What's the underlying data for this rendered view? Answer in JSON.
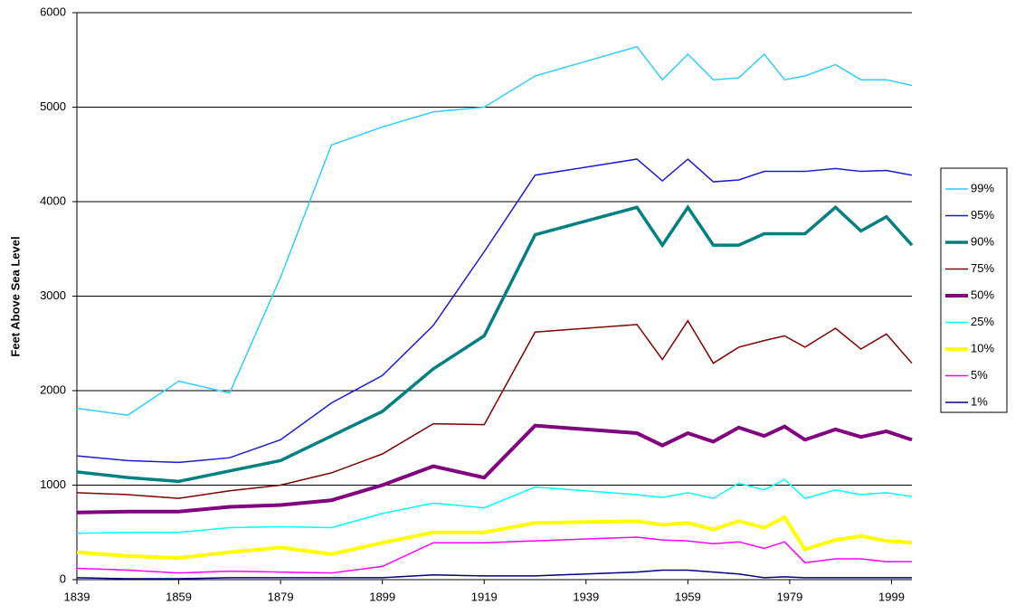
{
  "chart_data": {
    "type": "line",
    "y_label": "Feet Above Sea Level",
    "x": [
      1839,
      1849,
      1859,
      1869,
      1879,
      1889,
      1899,
      1909,
      1919,
      1929,
      1949,
      1954,
      1959,
      1964,
      1969,
      1974,
      1978,
      1982,
      1988,
      1993,
      1998,
      2003
    ],
    "xlim": [
      1839,
      2003
    ],
    "xticks": [
      1839,
      1859,
      1879,
      1899,
      1919,
      1939,
      1959,
      1979,
      1999
    ],
    "ylim": [
      0,
      6000
    ],
    "yticks": [
      0,
      1000,
      2000,
      3000,
      4000,
      5000,
      6000
    ],
    "grid": true,
    "legend": "right",
    "series": [
      {
        "name": "99%",
        "color": "#33ccff",
        "width": 1.5,
        "values": [
          1813,
          1740,
          2100,
          1975,
          3200,
          4600,
          4790,
          4950,
          5000,
          5330,
          5640,
          5290,
          5560,
          5290,
          5310,
          5560,
          5290,
          5330,
          5450,
          5290,
          5290,
          5230
        ]
      },
      {
        "name": "95%",
        "color": "#1a1ad9",
        "width": 1.5,
        "values": [
          1310,
          1260,
          1240,
          1290,
          1480,
          1870,
          2160,
          2690,
          3470,
          4280,
          4450,
          4220,
          4450,
          4210,
          4230,
          4320,
          4320,
          4320,
          4350,
          4320,
          4330,
          4280
        ]
      },
      {
        "name": "90%",
        "color": "#008080",
        "width": 3.5,
        "values": [
          1140,
          1080,
          1040,
          1150,
          1260,
          1520,
          1780,
          2230,
          2580,
          3650,
          3940,
          3540,
          3940,
          3540,
          3540,
          3660,
          3660,
          3660,
          3940,
          3690,
          3840,
          3540
        ]
      },
      {
        "name": "75%",
        "color": "#800000",
        "width": 1.5,
        "values": [
          920,
          900,
          860,
          940,
          1000,
          1130,
          1330,
          1650,
          1640,
          2620,
          2700,
          2330,
          2740,
          2290,
          2460,
          2530,
          2580,
          2460,
          2660,
          2440,
          2600,
          2290
        ]
      },
      {
        "name": "50%",
        "color": "#800080",
        "width": 4,
        "values": [
          710,
          720,
          720,
          770,
          790,
          840,
          1000,
          1200,
          1080,
          1630,
          1550,
          1420,
          1550,
          1460,
          1610,
          1520,
          1620,
          1480,
          1590,
          1510,
          1570,
          1480
        ]
      },
      {
        "name": "25%",
        "color": "#00ffff",
        "width": 1.5,
        "values": [
          490,
          500,
          500,
          550,
          560,
          550,
          700,
          810,
          760,
          980,
          900,
          870,
          920,
          860,
          1020,
          950,
          1060,
          860,
          950,
          900,
          920,
          880
        ]
      },
      {
        "name": "10%",
        "color": "#ffff00",
        "width": 4,
        "values": [
          290,
          250,
          230,
          290,
          340,
          270,
          390,
          500,
          500,
          600,
          620,
          580,
          600,
          530,
          620,
          550,
          660,
          320,
          420,
          460,
          410,
          390
        ]
      },
      {
        "name": "5%",
        "color": "#ff00ff",
        "width": 1.5,
        "values": [
          120,
          100,
          70,
          90,
          80,
          70,
          140,
          390,
          390,
          410,
          450,
          420,
          410,
          380,
          400,
          330,
          400,
          180,
          220,
          220,
          190,
          190
        ]
      },
      {
        "name": "1%",
        "color": "#000080",
        "width": 1.5,
        "values": [
          20,
          10,
          10,
          20,
          20,
          20,
          20,
          50,
          40,
          40,
          80,
          100,
          100,
          80,
          60,
          20,
          30,
          20,
          20,
          20,
          20,
          20
        ]
      }
    ]
  }
}
